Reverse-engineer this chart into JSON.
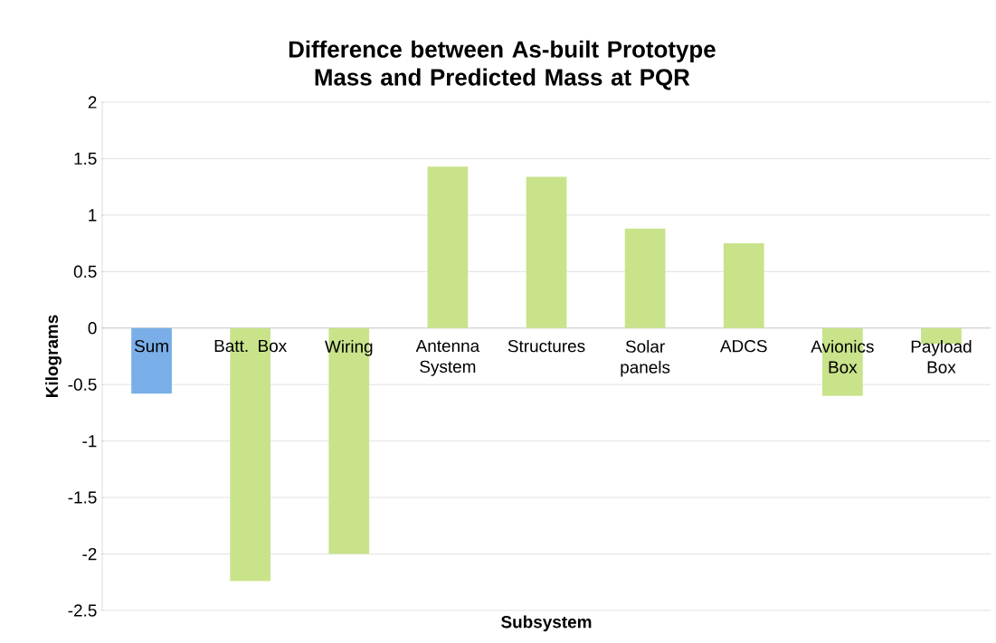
{
  "chart_data": {
    "type": "bar",
    "title": "Difference between As-built Prototype Mass and Predicted Mass at PQR",
    "xlabel": "Subsystem",
    "ylabel": "Kilograms",
    "categories": [
      "Sum",
      "Batt. Box",
      "Wiring",
      "Antenna System",
      "Structures",
      "Solar panels",
      "ADCS",
      "Avionics Box",
      "Payload Box"
    ],
    "values": [
      -0.58,
      -2.24,
      -2.0,
      1.43,
      1.34,
      0.88,
      0.75,
      -0.6,
      -0.14
    ],
    "colors": [
      "#79aee8",
      "#c8e38a",
      "#c8e38a",
      "#c8e38a",
      "#c8e38a",
      "#c8e38a",
      "#c8e38a",
      "#c8e38a",
      "#c8e38a"
    ],
    "ylim": [
      -2.5,
      2
    ],
    "yticks": [
      -2.5,
      -2,
      -1.5,
      -1,
      -0.5,
      0,
      0.5,
      1,
      1.5,
      2
    ],
    "grid": "y"
  }
}
